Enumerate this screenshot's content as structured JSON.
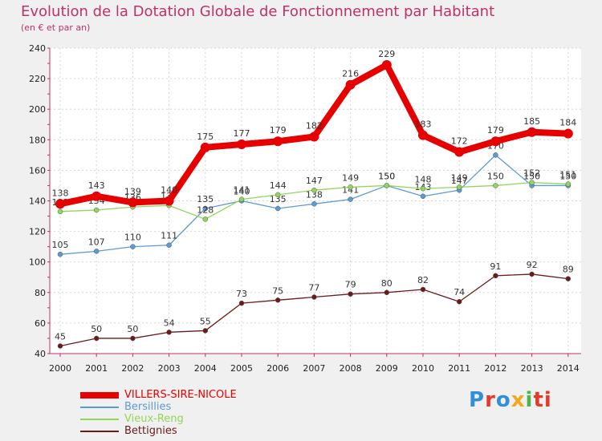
{
  "chart_data": {
    "type": "line",
    "title": "Evolution de la Dotation Globale de Fonctionnement par Habitant",
    "subtitle": "(en € et par an)",
    "categories": [
      "2000",
      "2001",
      "2002",
      "2003",
      "2004",
      "2005",
      "2006",
      "2007",
      "2008",
      "2009",
      "2010",
      "2011",
      "2012",
      "2013",
      "2014"
    ],
    "ylim": [
      40,
      240
    ],
    "yticks": [
      40,
      60,
      80,
      100,
      120,
      140,
      160,
      180,
      200,
      220,
      240
    ],
    "legend_position": "bottom-left",
    "series": [
      {
        "name": "Bettignies",
        "color": "#6b1a1a",
        "values": [
          45,
          50,
          50,
          54,
          55,
          73,
          75,
          77,
          79,
          80,
          82,
          74,
          91,
          92,
          89
        ]
      },
      {
        "name": "Bersillies",
        "color": "#5b9bd5",
        "values": [
          105,
          107,
          110,
          111,
          135,
          140,
          135,
          138,
          141,
          150,
          143,
          147,
          170,
          150,
          150
        ]
      },
      {
        "name": "Vieux-Reng",
        "color": "#8fd65a",
        "values": [
          133,
          134,
          136,
          137,
          128,
          141,
          144,
          147,
          149,
          150,
          148,
          149,
          150,
          152,
          151
        ]
      },
      {
        "name": "VILLERS-SIRE-NICOLE",
        "color": "#e60000",
        "values": [
          138,
          143,
          139,
          140,
          175,
          177,
          179,
          182,
          216,
          229,
          183,
          172,
          179,
          185,
          184
        ]
      }
    ],
    "legend": [
      "VILLERS-SIRE-NICOLE",
      "Bersillies",
      "Vieux-Reng",
      "Bettignies"
    ]
  },
  "brand": [
    "P",
    "r",
    "o",
    "x",
    "i",
    "ti"
  ]
}
